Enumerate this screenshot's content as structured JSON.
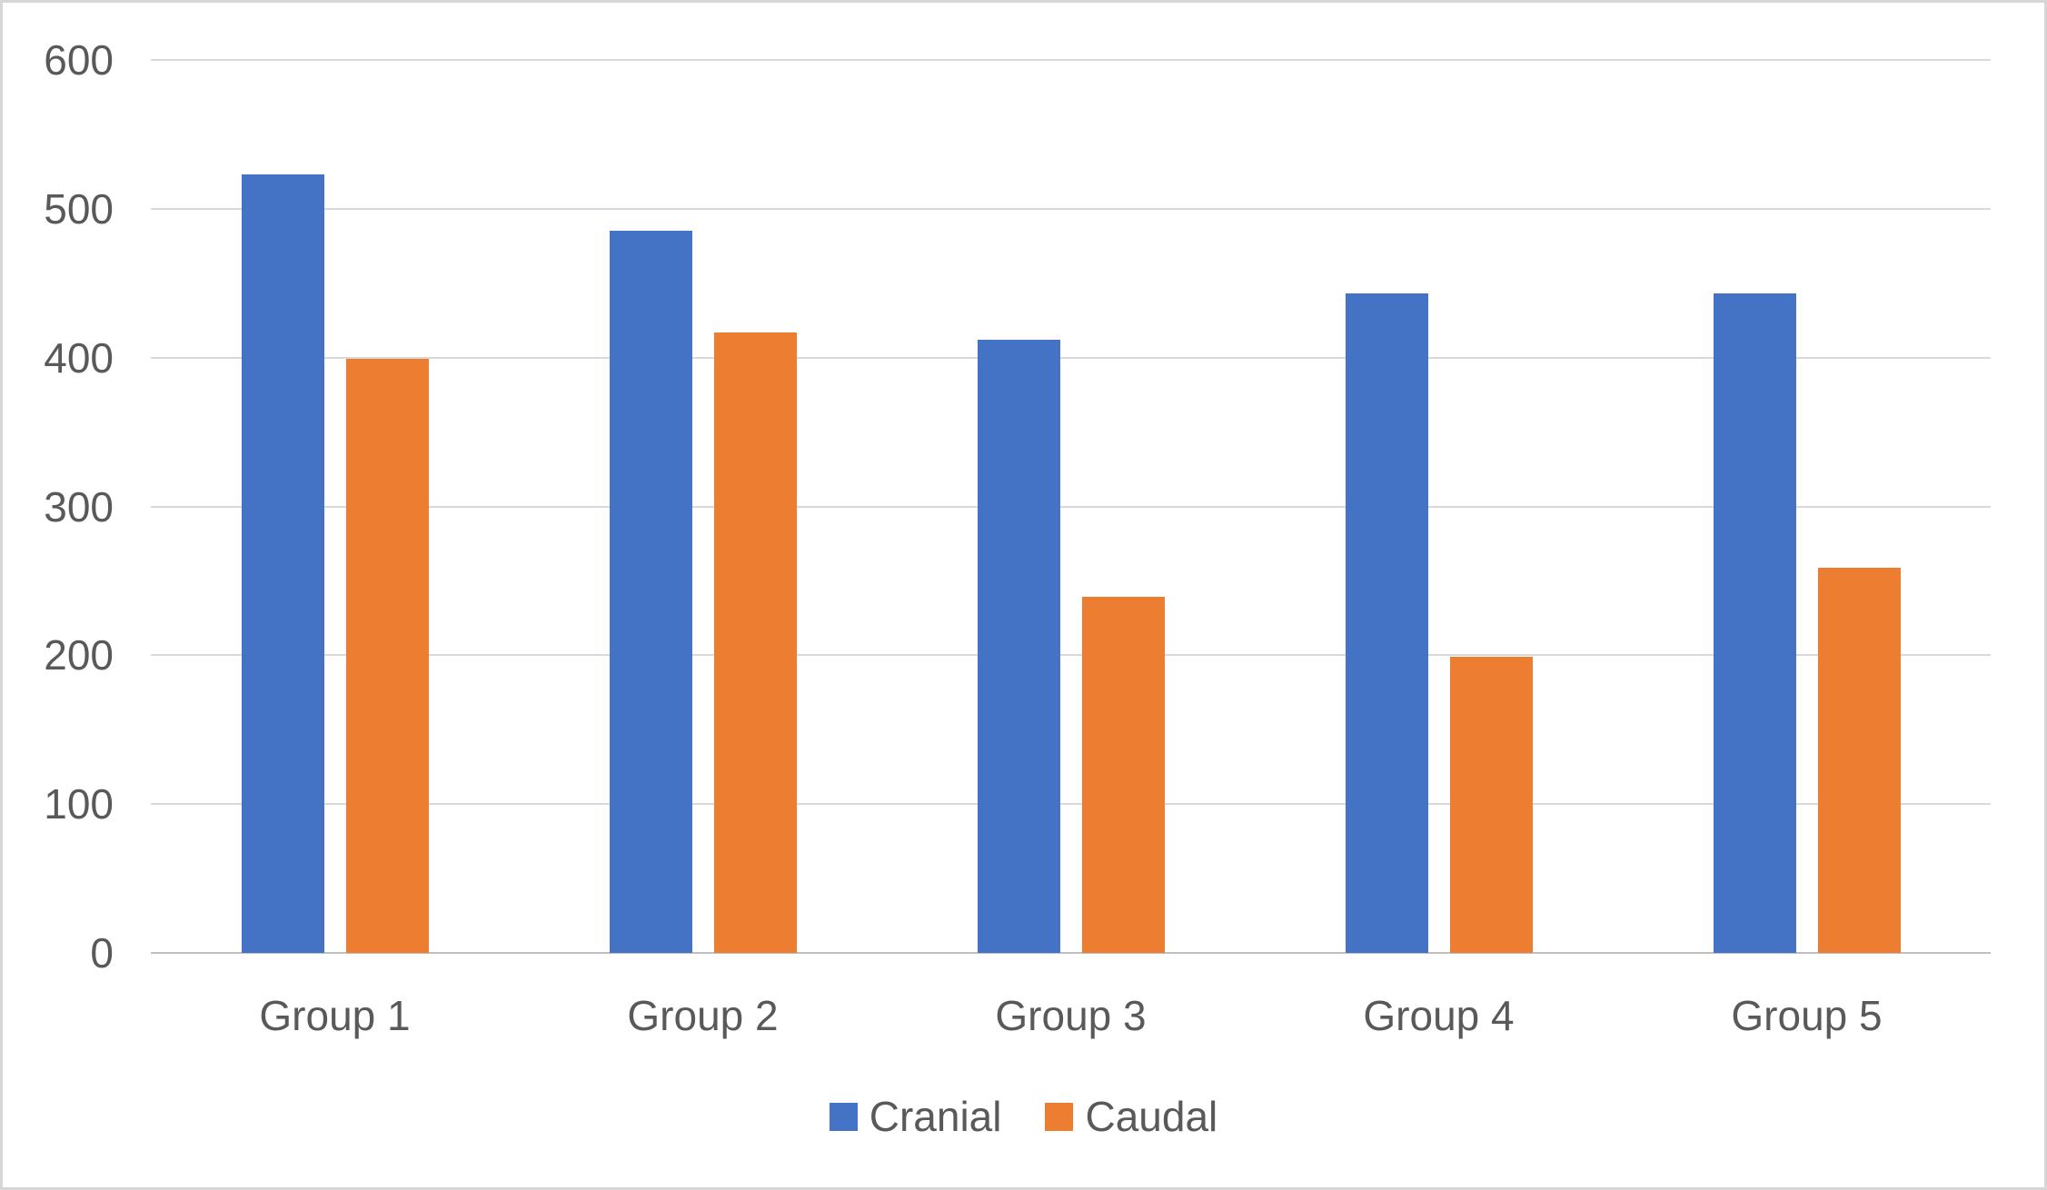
{
  "chart_data": {
    "type": "bar",
    "title": "",
    "xlabel": "",
    "ylabel": "",
    "categories": [
      "Group 1",
      "Group 2",
      "Group 3",
      "Group 4",
      "Group 5"
    ],
    "series": [
      {
        "name": "Cranial",
        "color": "#4472C4",
        "values": [
          523,
          485,
          412,
          443,
          443
        ]
      },
      {
        "name": "Caudal",
        "color": "#ED7D31",
        "values": [
          399,
          417,
          239,
          199,
          259
        ]
      }
    ],
    "ylim": [
      0,
      600
    ],
    "yticks": [
      0,
      100,
      200,
      300,
      400,
      500,
      600
    ],
    "grid": "horizontal-on",
    "legend_position": "bottom",
    "legend_labels": [
      "Cranial",
      "Caudal"
    ],
    "style": {
      "background": "#ffffff",
      "border": "#d6d6d6",
      "gridline": "#d9d9d9",
      "axis_line": "#bfbfbf",
      "text": "#595959"
    }
  }
}
